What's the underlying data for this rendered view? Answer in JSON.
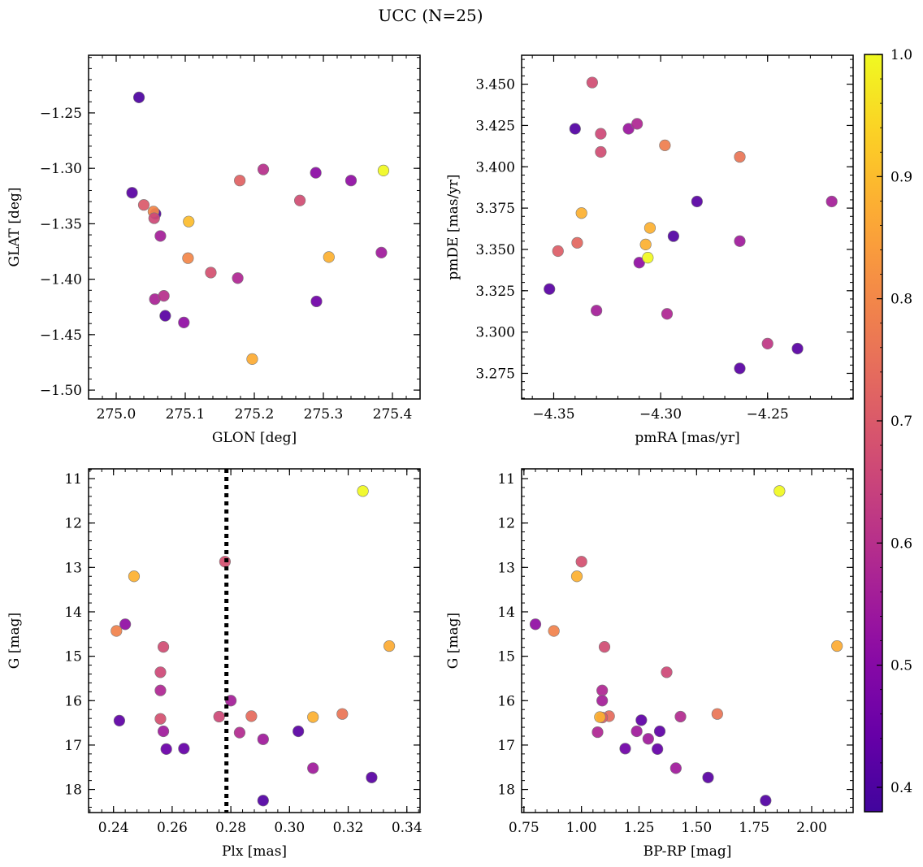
{
  "suptitle": "UCC (N=25)",
  "colors": {
    "marker_edge": "#7a7a7a",
    "refline": "#000000"
  },
  "colorbar": {
    "colormap": "plasma",
    "min": 0.38,
    "max": 1.0,
    "ticks": [
      0.4,
      0.5,
      0.6,
      0.7,
      0.8,
      0.9,
      1.0
    ],
    "tick_labels": [
      "0.4",
      "0.5",
      "0.6",
      "0.7",
      "0.8",
      "0.9",
      "1.0"
    ]
  },
  "chart_data": [
    {
      "type": "scatter",
      "xlabel": "GLON [deg]",
      "ylabel": "GLAT [deg]",
      "xlim": [
        274.96,
        275.44
      ],
      "ylim": [
        -1.508,
        -1.198
      ],
      "xticks": [
        275.0,
        275.1,
        275.2,
        275.3,
        275.4
      ],
      "xtick_labels": [
        "275.0",
        "275.1",
        "275.2",
        "275.3",
        "275.4"
      ],
      "yticks": [
        -1.25,
        -1.3,
        -1.35,
        -1.4,
        -1.45,
        -1.5
      ],
      "ytick_labels": [
        "−1.25",
        "−1.30",
        "−1.35",
        "−1.40",
        "−1.45",
        "−1.50"
      ],
      "y_inverted": false,
      "points": [
        {
          "x": 275.033,
          "y": -1.236,
          "c": 0.4
        },
        {
          "x": 275.023,
          "y": -1.322,
          "c": 0.42
        },
        {
          "x": 275.04,
          "y": -1.333,
          "c": 0.7
        },
        {
          "x": 275.057,
          "y": -1.341,
          "c": 0.41
        },
        {
          "x": 275.054,
          "y": -1.339,
          "c": 0.8
        },
        {
          "x": 275.055,
          "y": -1.345,
          "c": 0.66
        },
        {
          "x": 275.064,
          "y": -1.361,
          "c": 0.56
        },
        {
          "x": 275.056,
          "y": -1.418,
          "c": 0.57
        },
        {
          "x": 275.069,
          "y": -1.415,
          "c": 0.6
        },
        {
          "x": 275.071,
          "y": -1.433,
          "c": 0.42
        },
        {
          "x": 275.098,
          "y": -1.439,
          "c": 0.52
        },
        {
          "x": 275.105,
          "y": -1.348,
          "c": 0.9
        },
        {
          "x": 275.104,
          "y": -1.381,
          "c": 0.8
        },
        {
          "x": 275.137,
          "y": -1.394,
          "c": 0.68
        },
        {
          "x": 275.176,
          "y": -1.399,
          "c": 0.58
        },
        {
          "x": 275.179,
          "y": -1.311,
          "c": 0.72
        },
        {
          "x": 275.197,
          "y": -1.472,
          "c": 0.87
        },
        {
          "x": 275.213,
          "y": -1.301,
          "c": 0.6
        },
        {
          "x": 275.266,
          "y": -1.329,
          "c": 0.67
        },
        {
          "x": 275.289,
          "y": -1.304,
          "c": 0.51
        },
        {
          "x": 275.29,
          "y": -1.42,
          "c": 0.46
        },
        {
          "x": 275.308,
          "y": -1.38,
          "c": 0.88
        },
        {
          "x": 275.34,
          "y": -1.311,
          "c": 0.52
        },
        {
          "x": 275.384,
          "y": -1.376,
          "c": 0.55
        },
        {
          "x": 275.387,
          "y": -1.302,
          "c": 1.0
        }
      ]
    },
    {
      "type": "scatter",
      "xlabel": "pmRA [mas/yr]",
      "ylabel": "pmDE [mas/yr]",
      "xlim": [
        -4.365,
        -4.21
      ],
      "ylim": [
        3.2595,
        3.4675
      ],
      "xticks": [
        -4.35,
        -4.3,
        -4.25
      ],
      "xtick_labels": [
        "−4.35",
        "−4.30",
        "−4.25"
      ],
      "yticks": [
        3.275,
        3.3,
        3.325,
        3.35,
        3.375,
        3.4,
        3.425,
        3.45
      ],
      "ytick_labels": [
        "3.275",
        "3.300",
        "3.325",
        "3.350",
        "3.375",
        "3.400",
        "3.425",
        "3.450"
      ],
      "y_inverted": false,
      "points": [
        {
          "x": -4.352,
          "y": 3.326,
          "c": 0.42
        },
        {
          "x": -4.348,
          "y": 3.349,
          "c": 0.71
        },
        {
          "x": -4.339,
          "y": 3.354,
          "c": 0.73
        },
        {
          "x": -4.337,
          "y": 3.372,
          "c": 0.88
        },
        {
          "x": -4.34,
          "y": 3.423,
          "c": 0.41
        },
        {
          "x": -4.332,
          "y": 3.451,
          "c": 0.67
        },
        {
          "x": -4.33,
          "y": 3.313,
          "c": 0.56
        },
        {
          "x": -4.328,
          "y": 3.42,
          "c": 0.66
        },
        {
          "x": -4.328,
          "y": 3.409,
          "c": 0.67
        },
        {
          "x": -4.315,
          "y": 3.423,
          "c": 0.54
        },
        {
          "x": -4.311,
          "y": 3.426,
          "c": 0.58
        },
        {
          "x": -4.31,
          "y": 3.342,
          "c": 0.52
        },
        {
          "x": -4.307,
          "y": 3.353,
          "c": 0.88
        },
        {
          "x": -4.306,
          "y": 3.345,
          "c": 1.0
        },
        {
          "x": -4.305,
          "y": 3.363,
          "c": 0.88
        },
        {
          "x": -4.298,
          "y": 3.413,
          "c": 0.78
        },
        {
          "x": -4.297,
          "y": 3.311,
          "c": 0.58
        },
        {
          "x": -4.294,
          "y": 3.358,
          "c": 0.41
        },
        {
          "x": -4.283,
          "y": 3.379,
          "c": 0.42
        },
        {
          "x": -4.263,
          "y": 3.406,
          "c": 0.76
        },
        {
          "x": -4.263,
          "y": 3.355,
          "c": 0.55
        },
        {
          "x": -4.263,
          "y": 3.278,
          "c": 0.42
        },
        {
          "x": -4.25,
          "y": 3.293,
          "c": 0.62
        },
        {
          "x": -4.236,
          "y": 3.29,
          "c": 0.42
        },
        {
          "x": -4.22,
          "y": 3.379,
          "c": 0.56
        }
      ]
    },
    {
      "type": "scatter",
      "xlabel": "Plx [mas]",
      "ylabel": "G [mag]",
      "xlim": [
        0.2315,
        0.3445
      ],
      "ylim": [
        10.78,
        18.52
      ],
      "xticks": [
        0.24,
        0.26,
        0.28,
        0.3,
        0.32,
        0.34
      ],
      "xtick_labels": [
        "0.24",
        "0.26",
        "0.28",
        "0.30",
        "0.32",
        "0.34"
      ],
      "yticks": [
        11,
        12,
        13,
        14,
        15,
        16,
        17,
        18
      ],
      "ytick_labels": [
        "11",
        "12",
        "13",
        "14",
        "15",
        "16",
        "17",
        "18"
      ],
      "y_inverted": true,
      "vline": {
        "x": 0.2785,
        "style": "dotted"
      },
      "points": [
        {
          "x": 0.325,
          "y": 11.28,
          "c": 1.0
        },
        {
          "x": 0.278,
          "y": 12.87,
          "c": 0.68
        },
        {
          "x": 0.247,
          "y": 13.2,
          "c": 0.88
        },
        {
          "x": 0.244,
          "y": 14.28,
          "c": 0.52
        },
        {
          "x": 0.241,
          "y": 14.43,
          "c": 0.79
        },
        {
          "x": 0.257,
          "y": 14.79,
          "c": 0.67
        },
        {
          "x": 0.334,
          "y": 14.77,
          "c": 0.87
        },
        {
          "x": 0.256,
          "y": 15.36,
          "c": 0.66
        },
        {
          "x": 0.256,
          "y": 15.77,
          "c": 0.58
        },
        {
          "x": 0.28,
          "y": 16.0,
          "c": 0.56
        },
        {
          "x": 0.276,
          "y": 16.36,
          "c": 0.66
        },
        {
          "x": 0.256,
          "y": 16.41,
          "c": 0.68
        },
        {
          "x": 0.287,
          "y": 16.35,
          "c": 0.74
        },
        {
          "x": 0.308,
          "y": 16.37,
          "c": 0.88
        },
        {
          "x": 0.318,
          "y": 16.3,
          "c": 0.76
        },
        {
          "x": 0.242,
          "y": 16.45,
          "c": 0.43
        },
        {
          "x": 0.257,
          "y": 16.69,
          "c": 0.55
        },
        {
          "x": 0.283,
          "y": 16.72,
          "c": 0.59
        },
        {
          "x": 0.303,
          "y": 16.69,
          "c": 0.42
        },
        {
          "x": 0.291,
          "y": 16.87,
          "c": 0.55
        },
        {
          "x": 0.258,
          "y": 17.09,
          "c": 0.45
        },
        {
          "x": 0.264,
          "y": 17.08,
          "c": 0.44
        },
        {
          "x": 0.308,
          "y": 17.52,
          "c": 0.55
        },
        {
          "x": 0.328,
          "y": 17.73,
          "c": 0.42
        },
        {
          "x": 0.291,
          "y": 18.25,
          "c": 0.41
        }
      ]
    },
    {
      "type": "scatter",
      "xlabel": "BP-RP [mag]",
      "ylabel": "G [mag]",
      "xlim": [
        0.74,
        2.18
      ],
      "ylim": [
        10.78,
        18.52
      ],
      "xticks": [
        0.75,
        1.0,
        1.25,
        1.5,
        1.75,
        2.0
      ],
      "xtick_labels": [
        "0.75",
        "1.00",
        "1.25",
        "1.50",
        "1.75",
        "2.00"
      ],
      "yticks": [
        11,
        12,
        13,
        14,
        15,
        16,
        17,
        18
      ],
      "ytick_labels": [
        "11",
        "12",
        "13",
        "14",
        "15",
        "16",
        "17",
        "18"
      ],
      "y_inverted": true,
      "points": [
        {
          "x": 1.86,
          "y": 11.28,
          "c": 1.0
        },
        {
          "x": 1.0,
          "y": 12.87,
          "c": 0.68
        },
        {
          "x": 0.98,
          "y": 13.2,
          "c": 0.88
        },
        {
          "x": 0.8,
          "y": 14.28,
          "c": 0.52
        },
        {
          "x": 0.88,
          "y": 14.43,
          "c": 0.79
        },
        {
          "x": 1.1,
          "y": 14.79,
          "c": 0.67
        },
        {
          "x": 2.11,
          "y": 14.77,
          "c": 0.87
        },
        {
          "x": 1.37,
          "y": 15.36,
          "c": 0.66
        },
        {
          "x": 1.09,
          "y": 15.77,
          "c": 0.58
        },
        {
          "x": 1.09,
          "y": 16.0,
          "c": 0.56
        },
        {
          "x": 1.12,
          "y": 16.35,
          "c": 0.74
        },
        {
          "x": 1.09,
          "y": 16.38,
          "c": 0.7
        },
        {
          "x": 1.08,
          "y": 16.37,
          "c": 0.88
        },
        {
          "x": 1.43,
          "y": 16.36,
          "c": 0.59
        },
        {
          "x": 1.59,
          "y": 16.3,
          "c": 0.76
        },
        {
          "x": 1.26,
          "y": 16.44,
          "c": 0.43
        },
        {
          "x": 1.07,
          "y": 16.71,
          "c": 0.58
        },
        {
          "x": 1.24,
          "y": 16.69,
          "c": 0.55
        },
        {
          "x": 1.34,
          "y": 16.69,
          "c": 0.43
        },
        {
          "x": 1.29,
          "y": 16.86,
          "c": 0.55
        },
        {
          "x": 1.19,
          "y": 17.08,
          "c": 0.46
        },
        {
          "x": 1.33,
          "y": 17.09,
          "c": 0.44
        },
        {
          "x": 1.41,
          "y": 17.52,
          "c": 0.55
        },
        {
          "x": 1.55,
          "y": 17.73,
          "c": 0.42
        },
        {
          "x": 1.8,
          "y": 18.25,
          "c": 0.41
        }
      ]
    }
  ]
}
